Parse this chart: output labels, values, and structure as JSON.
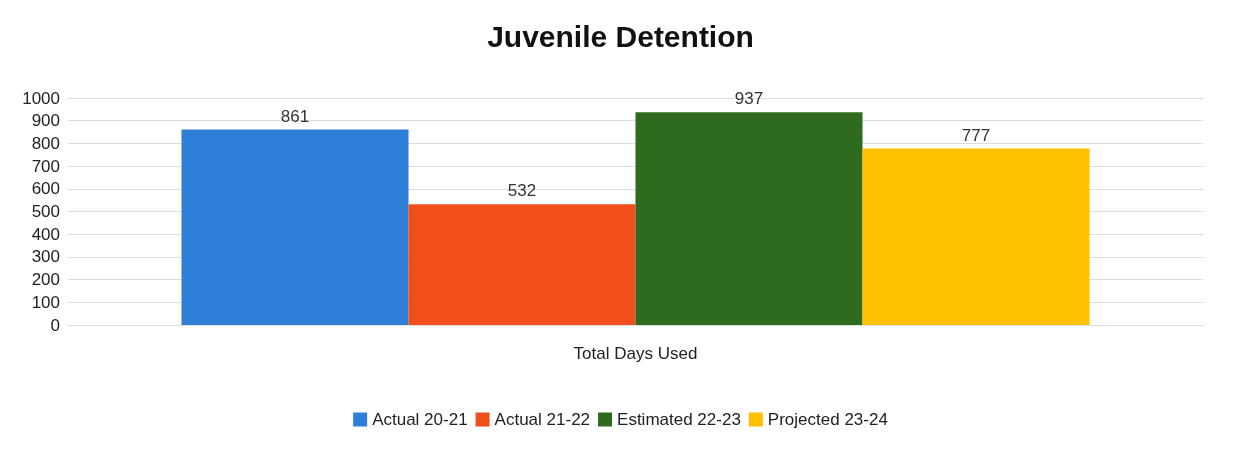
{
  "chart_data": {
    "type": "bar",
    "title": "Juvenile Detention",
    "categories": [
      "Total Days Used"
    ],
    "series": [
      {
        "name": "Actual 20-21",
        "color": "#2f7fd8",
        "values": [
          861
        ]
      },
      {
        "name": "Actual 21-22",
        "color": "#f04f1b",
        "values": [
          532
        ]
      },
      {
        "name": "Estimated 22-23",
        "color": "#2e6b1f",
        "values": [
          937
        ]
      },
      {
        "name": "Projected 23-24",
        "color": "#ffc000",
        "values": [
          777
        ]
      }
    ],
    "ylim": [
      0,
      1000
    ],
    "yticks": [
      0,
      100,
      200,
      300,
      400,
      500,
      600,
      700,
      800,
      900,
      1000
    ],
    "grid": "y",
    "legend": "bottom",
    "data_labels": true
  }
}
